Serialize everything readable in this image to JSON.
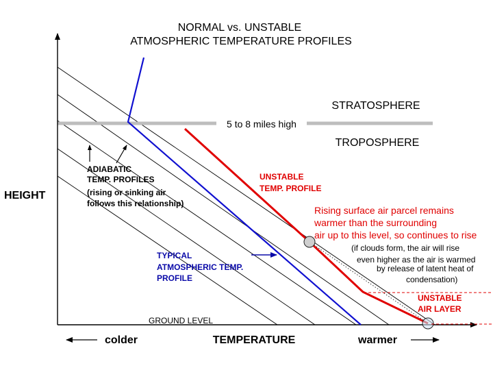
{
  "title": {
    "line1": "NORMAL vs. UNSTABLE",
    "line2": "ATMOSPHERIC TEMPERATURE PROFILES"
  },
  "axes": {
    "y_label": "HEIGHT",
    "x_label": "TEMPERATURE",
    "x_left": "colder",
    "x_right": "warmer",
    "ground": "GROUND LEVEL"
  },
  "layers": {
    "stratosphere": "STRATOSPHERE",
    "troposphere": "TROPOSPHERE",
    "tropopause": "5 to 8 miles high"
  },
  "labels": {
    "adiabatic": [
      "ADIABATIC",
      "TEMP. PROFILES",
      "(rising or sinking air",
      "follows this relationship)"
    ],
    "unstable_profile": [
      "UNSTABLE",
      "TEMP. PROFILE"
    ],
    "typical_profile": [
      "TYPICAL",
      "ATMOSPHERIC TEMP.",
      "PROFILE"
    ],
    "parcel": [
      "Rising surface air parcel remains",
      "warmer than the surrounding",
      "air up to this level, so continues to rise"
    ],
    "clouds": [
      "(if clouds form, the air will rise",
      "even higher as the air is warmed",
      "by release of latent heat of",
      "condensation)"
    ],
    "unstable_layer": [
      "UNSTABLE",
      "AIR LAYER"
    ]
  },
  "colors": {
    "red": "#e00000",
    "blue": "#1010d0",
    "navy": "#0a0aa8",
    "tropopause": "#bdbdbd",
    "text": "#000000"
  }
}
